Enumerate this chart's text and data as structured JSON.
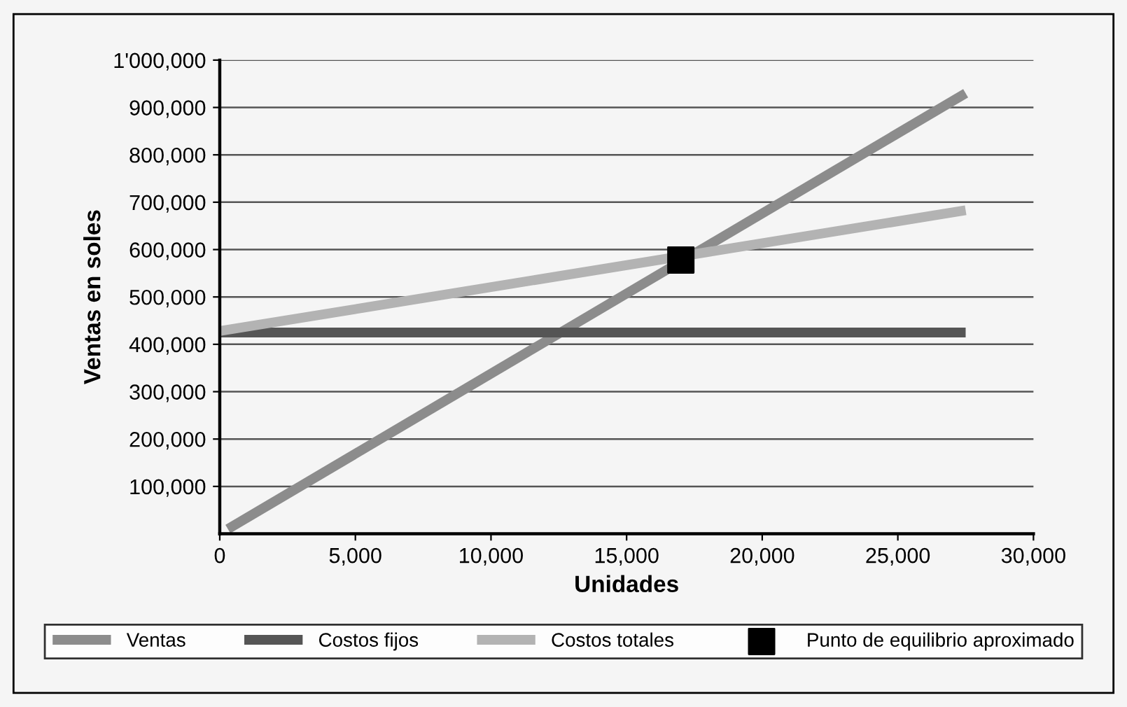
{
  "chart_data": {
    "type": "line",
    "xlabel": "Unidades",
    "ylabel": "Ventas en soles",
    "series": [
      {
        "name": "Ventas",
        "color": "#8c8c8c",
        "x": [
          300,
          27500
        ],
        "values": [
          10000,
          930000
        ]
      },
      {
        "name": "Costos fijos",
        "color": "#555555",
        "x": [
          0,
          27500
        ],
        "values": [
          425000,
          425000
        ]
      },
      {
        "name": "Costos totales",
        "color": "#b3b3b3",
        "x": [
          0,
          27500
        ],
        "values": [
          428000,
          683000
        ]
      },
      {
        "name": "Punto de equilibrio aproximado",
        "type": "scatter",
        "marker": "square",
        "color": "#000000",
        "x": [
          17000
        ],
        "values": [
          578000
        ]
      }
    ],
    "xlim": [
      0,
      30000
    ],
    "ylim": [
      0,
      1000000
    ],
    "xticks": [
      0,
      {
        "value": 5000,
        "label": "5,000"
      },
      {
        "value": 10000,
        "label": "10,000"
      },
      {
        "value": 15000,
        "label": "15,000"
      },
      {
        "value": 20000,
        "label": "20,000"
      },
      {
        "value": 25000,
        "label": "25,000"
      },
      {
        "value": 30000,
        "label": "30,000"
      }
    ],
    "yticks": [
      {
        "value": 100000,
        "label": "100,000"
      },
      {
        "value": 200000,
        "label": "200,000"
      },
      {
        "value": 300000,
        "label": "300,000"
      },
      {
        "value": 400000,
        "label": "400,000"
      },
      {
        "value": 500000,
        "label": "500,000"
      },
      {
        "value": 600000,
        "label": "600,000"
      },
      {
        "value": 700000,
        "label": "700,000"
      },
      {
        "value": 800000,
        "label": "800,000"
      },
      {
        "value": 900000,
        "label": "900,000"
      },
      {
        "value": 1000000,
        "label": "1'000,000"
      }
    ],
    "grid": "y",
    "legend": "bottom",
    "marker": "none",
    "line_style": "solid"
  }
}
